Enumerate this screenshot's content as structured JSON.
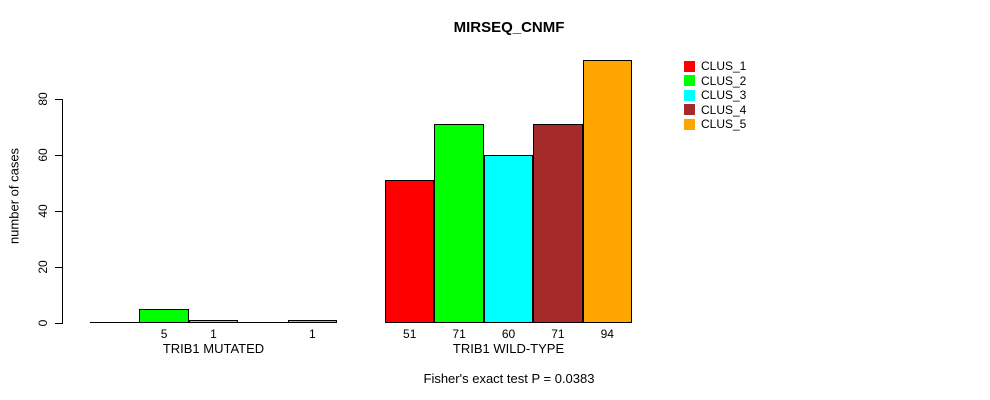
{
  "title": "MIRSEQ_CNMF",
  "chart_data": {
    "type": "bar",
    "title": "MIRSEQ_CNMF",
    "xlabel": "",
    "ylabel": "number of cases",
    "categories": [
      "TRIB1 MUTATED",
      "TRIB1 WILD-TYPE"
    ],
    "series": [
      {
        "name": "CLUS_1",
        "color": "#FF0000",
        "values": [
          0,
          51
        ]
      },
      {
        "name": "CLUS_2",
        "color": "#00FF00",
        "values": [
          5,
          71
        ]
      },
      {
        "name": "CLUS_3",
        "color": "#00FFFF",
        "values": [
          1,
          60
        ]
      },
      {
        "name": "CLUS_4",
        "color": "#A52A2A",
        "values": [
          0,
          71
        ]
      },
      {
        "name": "CLUS_5",
        "color": "#FFA500",
        "values": [
          1,
          94
        ]
      }
    ],
    "y_ticks": [
      0,
      20,
      40,
      60,
      80
    ],
    "ylim": [
      0,
      94
    ],
    "grid": false,
    "show_zero_value_labels": false,
    "legend_position": "right-of-plot-top",
    "annotation": "Fisher's exact test P = 0.0383"
  }
}
